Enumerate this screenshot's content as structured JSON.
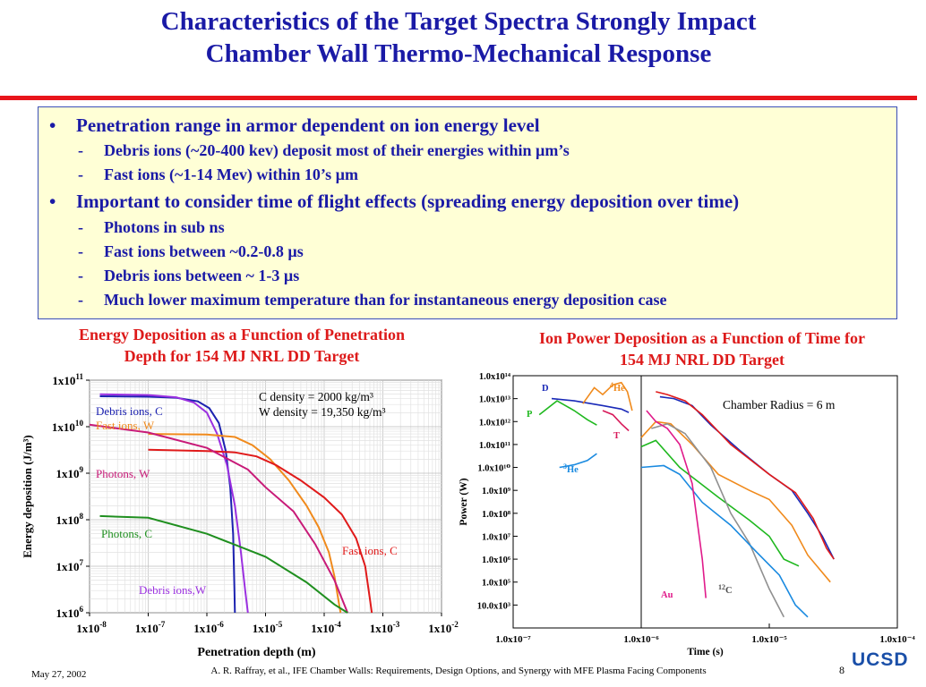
{
  "slide": {
    "title_line1": "Characteristics of the Target Spectra Strongly Impact",
    "title_line2": "Chamber Wall Thermo-Mechanical Response",
    "date": "May 27, 2002",
    "reference": "A. R. Raffray, et al., IFE Chamber Walls: Requirements, Design Options, and Synergy with MFE Plasma Facing Components",
    "page_number": "8",
    "logo_text": "UCSD",
    "colors": {
      "title": "#1a1aa6",
      "rule": "#e8151b",
      "box_bg": "#ffffd6",
      "chart_title": "#dd1a1a"
    }
  },
  "bullets": [
    {
      "marker": "•",
      "text": "Penetration range in armor dependent on ion energy level",
      "level": 1
    },
    {
      "marker": "-",
      "text": "Debris ions (~20-400 kev) deposit most of their energies within µm’s",
      "level": 2
    },
    {
      "marker": "-",
      "text": "Fast ions (~1-14 Mev) within 10’s µm",
      "level": 2
    },
    {
      "marker": "•",
      "text": "Important to consider time of flight effects (spreading energy deposition over time)",
      "level": 1
    },
    {
      "marker": "-",
      "text": "Photons in sub ns",
      "level": 2
    },
    {
      "marker": "-",
      "text": "Fast ions between ~0.2-0.8 µs",
      "level": 2
    },
    {
      "marker": "-",
      "text": "Debris ions between ~ 1-3 µs",
      "level": 2
    },
    {
      "marker": "-",
      "text": "Much lower maximum temperature than for instantaneous energy deposition case",
      "level": 2
    }
  ],
  "chart_data": [
    {
      "type": "line",
      "title_line1": "Energy Deposition as a Function of Penetration",
      "title_line2": "Depth for 154 MJ NRL DD Target",
      "xlabel": "Penetration depth (m)",
      "ylabel": "Energy deposition (J/m³)",
      "xscale": "log",
      "yscale": "log",
      "xlim": [
        1e-08,
        0.01
      ],
      "ylim": [
        1000000.0,
        100000000000.0
      ],
      "xtick_exponents": [
        "-8",
        "-7",
        "-6",
        "-5",
        "-4",
        "-3",
        "-2"
      ],
      "ytick_exponents": [
        "6",
        "7",
        "8",
        "9",
        "10",
        "11"
      ],
      "tick_prefix": "1x10",
      "grid": true,
      "annotations": [
        "C density = 2000 kg/m³",
        "W density = 19,350 kg/m³"
      ],
      "series": [
        {
          "name": "Debris ions, C",
          "color": "#1c22b0",
          "label_color": "#1c22b0",
          "points": [
            [
              1.5e-08,
              45000000000.0
            ],
            [
              1e-07,
              44000000000.0
            ],
            [
              3e-07,
              42000000000.0
            ],
            [
              7e-07,
              35000000000.0
            ],
            [
              1.1e-06,
              25000000000.0
            ],
            [
              1.6e-06,
              12000000000.0
            ],
            [
              2.1e-06,
              3000000000.0
            ],
            [
              2.5e-06,
              500000000.0
            ],
            [
              2.8e-06,
              50000000.0
            ],
            [
              2.95e-06,
              3000000.0
            ],
            [
              3e-06,
              1000000.0
            ]
          ]
        },
        {
          "name": "Debris ions,W",
          "color": "#9b30e0",
          "label_color": "#9b30e0",
          "points": [
            [
              1.5e-08,
              50000000000.0
            ],
            [
              1e-07,
              48000000000.0
            ],
            [
              3e-07,
              43000000000.0
            ],
            [
              6e-07,
              33000000000.0
            ],
            [
              1e-06,
              20000000000.0
            ],
            [
              1.5e-06,
              7000000000.0
            ],
            [
              2.2e-06,
              1500000000.0
            ],
            [
              3e-06,
              200000000.0
            ],
            [
              3.8e-06,
              20000000.0
            ],
            [
              4.5e-06,
              3000000.0
            ],
            [
              5e-06,
              1000000.0
            ]
          ]
        },
        {
          "name": "Fast ions, W",
          "color": "#f08a1c",
          "label_color": "#f08a1c",
          "points": [
            [
              1e-07,
              7000000000.0
            ],
            [
              1e-06,
              6800000000.0
            ],
            [
              3e-06,
              6000000000.0
            ],
            [
              6e-06,
              4000000000.0
            ],
            [
              1.2e-05,
              2000000000.0
            ],
            [
              2.5e-05,
              700000000.0
            ],
            [
              5e-05,
              200000000.0
            ],
            [
              8e-05,
              70000000.0
            ],
            [
              0.00012,
              20000000.0
            ],
            [
              0.00015,
              6000000.0
            ],
            [
              0.00018,
              1500000.0
            ],
            [
              0.00019,
              1000000.0
            ]
          ]
        },
        {
          "name": "Fast ions, C",
          "color": "#e01a1a",
          "label_color": "#e01a1a",
          "points": [
            [
              1e-07,
              3200000000.0
            ],
            [
              1e-06,
              3000000000.0
            ],
            [
              3e-06,
              2800000000.0
            ],
            [
              7e-06,
              2300000000.0
            ],
            [
              1.5e-05,
              1500000000.0
            ],
            [
              4e-05,
              700000000.0
            ],
            [
              0.0001,
              300000000.0
            ],
            [
              0.0002,
              130000000.0
            ],
            [
              0.00035,
              40000000.0
            ],
            [
              0.0005,
              10000000.0
            ],
            [
              0.0006,
              2000000.0
            ],
            [
              0.00065,
              1000000.0
            ]
          ]
        },
        {
          "name": "Photons, W",
          "color": "#c81a78",
          "label_color": "#c81a78",
          "points": [
            [
              1e-08,
              11000000000.0
            ],
            [
              1e-07,
              7500000000.0
            ],
            [
              1e-06,
              3500000000.0
            ],
            [
              5e-06,
              1200000000.0
            ],
            [
              1e-05,
              500000000.0
            ],
            [
              3e-05,
              150000000.0
            ],
            [
              7e-05,
              30000000.0
            ],
            [
              0.00015,
              5000000.0
            ],
            [
              0.00025,
              1000000.0
            ]
          ]
        },
        {
          "name": "Photons, C",
          "color": "#1f8f1f",
          "label_color": "#1f8f1f",
          "points": [
            [
              1.5e-08,
              120000000.0
            ],
            [
              1e-07,
              110000000.0
            ],
            [
              1e-06,
              50000000.0
            ],
            [
              1e-05,
              16000000.0
            ],
            [
              5e-05,
              4500000.0
            ],
            [
              0.00015,
              1500000.0
            ],
            [
              0.00025,
              1000000.0
            ]
          ]
        }
      ]
    },
    {
      "type": "line",
      "title_line1": "Ion Power Deposition as a Function of Time for",
      "title_line2": "154 MJ NRL DD Target",
      "xlabel": "Time (s)",
      "ylabel": "Power (W)",
      "xscale": "log",
      "yscale": "log",
      "xlim": [
        1e-07,
        0.0001
      ],
      "ylim": [
        1000.0,
        100000000000000.0
      ],
      "xticks": [
        "1.0x10⁻⁷",
        "1.0x10⁻⁶",
        "1.0x10⁻⁵",
        "1.0x10⁻⁴"
      ],
      "yticks": [
        "10.0x10³",
        "1.0x10⁵",
        "1.0x10⁶",
        "1.0x10⁷",
        "1.0x10⁸",
        "1.0x10⁹",
        "1.0x10¹⁰",
        "1.0x10¹¹",
        "1.0x10¹²",
        "1.0x10¹³",
        "1.0x10¹⁴"
      ],
      "annotation": "Chamber Radius = 6 m",
      "series": [
        {
          "name": "D",
          "color": "#1a2ab8",
          "label_color": "#1a2ab8",
          "points": [
            [
              2e-07,
              10000000000000.0
            ],
            [
              3e-07,
              8000000000000.0
            ],
            [
              5e-07,
              5000000000000.0
            ],
            [
              7e-07,
              3500000000000.0
            ],
            [
              8e-07,
              2500000000000.0
            ]
          ]
        },
        {
          "name": "4He",
          "color": "#f08a1c",
          "label_color": "#f08a1c",
          "points": [
            [
              3.5e-07,
              6000000000000.0
            ],
            [
              4.3e-07,
              30000000000000.0
            ],
            [
              5e-07,
              15000000000000.0
            ],
            [
              6e-07,
              40000000000000.0
            ],
            [
              7e-07,
              50000000000000.0
            ],
            [
              7.8e-07,
              20000000000000.0
            ],
            [
              8.5e-07,
              3000000000000.0
            ]
          ]
        },
        {
          "name": "P",
          "color": "#1fb81f",
          "label_color": "#1fb81f",
          "points": [
            [
              1.6e-07,
              2000000000000.0
            ],
            [
              2.2e-07,
              8000000000000.0
            ],
            [
              3e-07,
              3000000000000.0
            ],
            [
              3.8e-07,
              1200000000000.0
            ],
            [
              4.5e-07,
              700000000000.0
            ]
          ]
        },
        {
          "name": "T",
          "color": "#d81a5a",
          "label_color": "#d81a5a",
          "points": [
            [
              5e-07,
              3000000000000.0
            ],
            [
              6e-07,
              2000000000000.0
            ],
            [
              7e-07,
              800000000000.0
            ],
            [
              8e-07,
              400000000000.0
            ]
          ]
        },
        {
          "name": "3He",
          "color": "#1a8ae0",
          "label_color": "#1a8ae0",
          "points": [
            [
              2.3e-07,
              10000000000.0
            ],
            [
              3e-07,
              13000000000.0
            ],
            [
              3.8e-07,
              20000000000.0
            ],
            [
              4.5e-07,
              40000000000.0
            ]
          ]
        },
        {
          "name": "D (main)",
          "color": "#1a2ab8",
          "label_color": "#1a2ab8",
          "points": [
            [
              1.4e-06,
              12000000000000.0
            ],
            [
              1.8e-06,
              10000000000000.0
            ],
            [
              2.5e-06,
              5000000000000.0
            ],
            [
              3.5e-06,
              700000000000.0
            ],
            [
              6e-06,
              50000000000.0
            ],
            [
              1e-05,
              5000000000.0
            ],
            [
              1.5e-05,
              1000000000.0
            ],
            [
              2e-05,
              100000000.0
            ],
            [
              2.6e-05,
              10000000.0
            ],
            [
              3.2e-05,
              1000000.0
            ]
          ]
        },
        {
          "name": "T (main)",
          "color": "#e01a1a",
          "label_color": "#e01a1a",
          "points": [
            [
              1.3e-06,
              20000000000000.0
            ],
            [
              1.6e-06,
              15000000000000.0
            ],
            [
              2.2e-06,
              8000000000000.0
            ],
            [
              3e-06,
              2000000000000.0
            ],
            [
              5e-06,
              100000000000.0
            ],
            [
              1e-05,
              5000000000.0
            ],
            [
              1.6e-05,
              800000000.0
            ],
            [
              2.2e-05,
              60000000.0
            ],
            [
              2.8e-05,
              3000000.0
            ],
            [
              3.2e-05,
              1000000.0
            ]
          ]
        },
        {
          "name": "4He (main)",
          "color": "#f08a1c",
          "label_color": "#f08a1c",
          "points": [
            [
              1e-06,
              200000000000.0
            ],
            [
              1.3e-06,
              1000000000000.0
            ],
            [
              1.7e-06,
              800000000000.0
            ],
            [
              2.5e-06,
              100000000000.0
            ],
            [
              4e-06,
              5000000000.0
            ],
            [
              7e-06,
              1000000000.0
            ],
            [
              1e-05,
              400000000.0
            ],
            [
              1.5e-05,
              30000000.0
            ],
            [
              2e-05,
              1500000.0
            ],
            [
              3e-05,
              100000.0
            ]
          ]
        },
        {
          "name": "P (main)",
          "color": "#1fb81f",
          "label_color": "#1fb81f",
          "points": [
            [
              1e-06,
              80000000000.0
            ],
            [
              1.3e-06,
              150000000000.0
            ],
            [
              2e-06,
              10000000000.0
            ],
            [
              4e-06,
              500000000.0
            ],
            [
              7e-06,
              50000000.0
            ],
            [
              1e-05,
              10000000.0
            ],
            [
              1.3e-05,
              1000000.0
            ],
            [
              1.7e-05,
              500000.0
            ]
          ]
        },
        {
          "name": "12C",
          "color": "#909090",
          "label_color": "#4a4a4a",
          "points": [
            [
              1.2e-06,
              500000000000.0
            ],
            [
              1.6e-06,
              800000000000.0
            ],
            [
              2.2e-06,
              300000000000.0
            ],
            [
              3.5e-06,
              10000000000.0
            ],
            [
              5e-06,
              100000000.0
            ],
            [
              7e-06,
              5000000.0
            ],
            [
              1e-05,
              50000.0
            ],
            [
              1.3e-05,
              3000.0
            ]
          ]
        },
        {
          "name": "3He (main)",
          "color": "#1a8ae0",
          "label_color": "#1a8ae0",
          "points": [
            [
              1e-06,
              10000000000.0
            ],
            [
              1.5e-06,
              12000000000.0
            ],
            [
              2e-06,
              5000000000.0
            ],
            [
              3e-06,
              300000000.0
            ],
            [
              5e-06,
              30000000.0
            ],
            [
              8e-06,
              2000000.0
            ],
            [
              1.2e-05,
              200000.0
            ],
            [
              1.6e-05,
              10000.0
            ],
            [
              2e-05,
              3000.0
            ]
          ]
        },
        {
          "name": "Au",
          "color": "#e01a8a",
          "label_color": "#e01a8a",
          "points": [
            [
              1.1e-06,
              3000000000000.0
            ],
            [
              1.3e-06,
              1000000000000.0
            ],
            [
              1.6e-06,
              500000000000.0
            ],
            [
              2e-06,
              100000000000.0
            ],
            [
              2.5e-06,
              2000000000.0
            ],
            [
              3e-06,
              1000000.0
            ],
            [
              3.2e-06,
              20000.0
            ]
          ]
        }
      ]
    }
  ]
}
